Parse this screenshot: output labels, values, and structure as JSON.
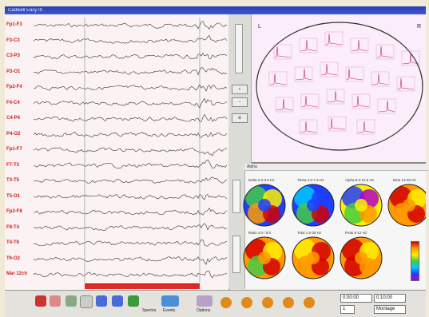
{
  "window": {
    "title": "Cadwell Easy III"
  },
  "eeg": {
    "channels": [
      {
        "label": "Fp1-F3"
      },
      {
        "label": "F3-C3"
      },
      {
        "label": "C3-P3"
      },
      {
        "label": "P3-O1"
      },
      {
        "label": "Fp2-F4"
      },
      {
        "label": "F4-C4"
      },
      {
        "label": "C4-P4"
      },
      {
        "label": "P4-O2"
      },
      {
        "label": "Fp1-F7"
      },
      {
        "label": "F7-T3"
      },
      {
        "label": "T3-T5"
      },
      {
        "label": "T5-O1"
      },
      {
        "label": "Fp2-F8"
      },
      {
        "label": "F8-T4"
      },
      {
        "label": "T4-T6"
      },
      {
        "label": "T6-O2"
      },
      {
        "label": "Mar 12ch"
      }
    ]
  },
  "spectra": {
    "corner_left": "L",
    "corner_right": "R"
  },
  "topomaps": {
    "header": "Alpha",
    "maps": [
      {
        "label": "Delta 2.0-3.5 Hz"
      },
      {
        "label": "Theta 4.0-7.5 Hz"
      },
      {
        "label": "Alpha 8.0-12.5 Hz"
      },
      {
        "label": "Beta 13-30 Hz"
      },
      {
        "label": "Ratio 4.0 / 8.0"
      },
      {
        "label": "Total 1.5-30 Hz"
      },
      {
        "label": "Peak 8-12 Hz"
      }
    ]
  },
  "toolbar": {
    "labels": [
      "Spectra",
      "Events",
      "Options"
    ],
    "time_start": "0:00:00",
    "time_end": "0:10:00",
    "page": "1",
    "montage": "Montage"
  },
  "colors": {
    "title_bar": "#2a3fb0",
    "channel_label": "#d01a1a",
    "time_marker": "#e02a2a"
  },
  "icons": [
    "play-icon",
    "rewind-icon",
    "forward-icon",
    "brain-icon",
    "head-icon",
    "print-icon",
    "chart-icon"
  ]
}
